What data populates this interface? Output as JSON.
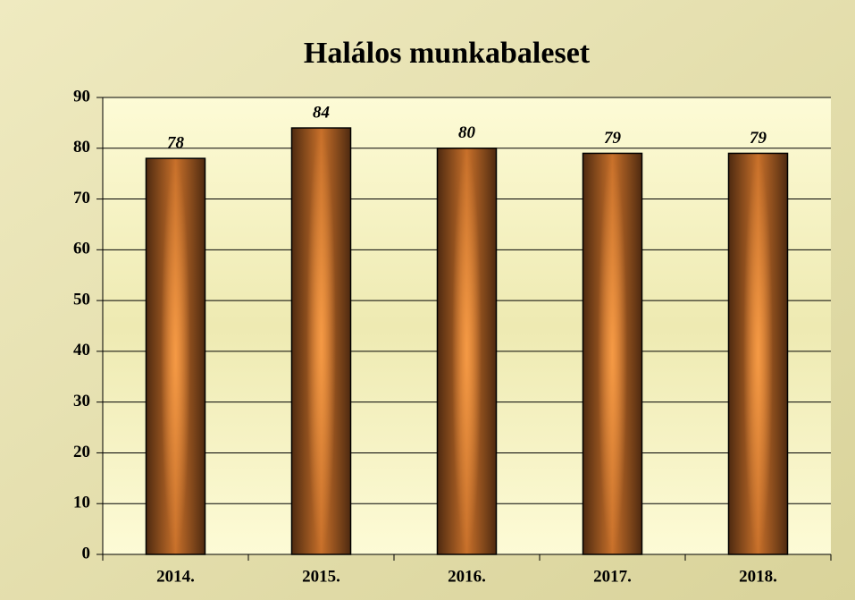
{
  "chart_data": {
    "type": "bar",
    "title": "Halálos munkabaleset",
    "categories": [
      "2014.",
      "2015.",
      "2016.",
      "2017.",
      "2018."
    ],
    "values": [
      78,
      84,
      80,
      79,
      79
    ],
    "color": "#e8883a",
    "ylim": [
      0,
      90
    ],
    "yticks": [
      0,
      10,
      20,
      30,
      40,
      50,
      60,
      70,
      80,
      90
    ],
    "grid": true
  }
}
